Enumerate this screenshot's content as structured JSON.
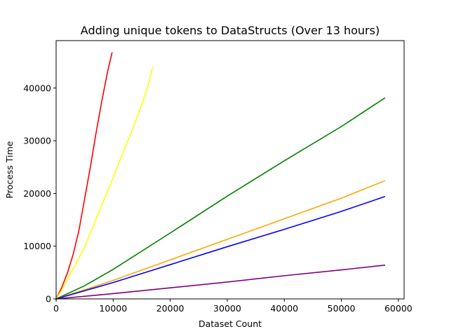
{
  "chart_data": {
    "type": "line",
    "title": "Adding unique tokens to DataStructs (Over 13 hours)",
    "xlabel": "Dataset Count",
    "ylabel": "Process Time",
    "xlim": [
      0,
      61000
    ],
    "ylim": [
      0,
      49000
    ],
    "xticks": [
      0,
      10000,
      20000,
      30000,
      40000,
      50000,
      60000
    ],
    "yticks": [
      0,
      10000,
      20000,
      30000,
      40000
    ],
    "grid": false,
    "series": [
      {
        "color": "#ff0000",
        "x": [
          0,
          1000,
          2000,
          3000,
          4000,
          5000,
          6000,
          7000,
          8000,
          9000,
          9800
        ],
        "y": [
          0,
          2200,
          5000,
          8500,
          13000,
          19000,
          25000,
          31500,
          37500,
          43000,
          46700
        ]
      },
      {
        "color": "#ffff00",
        "x": [
          0,
          1000,
          2000,
          3000,
          4000,
          5000,
          6000,
          8000,
          10000,
          12000,
          14000,
          16000,
          16900
        ],
        "y": [
          0,
          1700,
          3800,
          5800,
          7800,
          9800,
          12500,
          17800,
          23000,
          28500,
          33800,
          40000,
          43900
        ]
      },
      {
        "color": "#008000",
        "x": [
          0,
          5000,
          10000,
          20000,
          30000,
          40000,
          50000,
          57600
        ],
        "y": [
          0,
          2500,
          5600,
          12500,
          19500,
          26200,
          32700,
          38100
        ]
      },
      {
        "color": "#ffa500",
        "x": [
          0,
          10000,
          20000,
          30000,
          40000,
          50000,
          57600
        ],
        "y": [
          0,
          3500,
          7400,
          11300,
          15200,
          19100,
          22400
        ]
      },
      {
        "color": "#0000ff",
        "x": [
          0,
          10000,
          20000,
          30000,
          40000,
          50000,
          57600
        ],
        "y": [
          0,
          3100,
          6500,
          9900,
          13200,
          16600,
          19400
        ]
      },
      {
        "color": "#800080",
        "x": [
          0,
          10000,
          20000,
          30000,
          40000,
          50000,
          57600
        ],
        "y": [
          0,
          1000,
          2100,
          3200,
          4400,
          5500,
          6400
        ]
      }
    ]
  }
}
